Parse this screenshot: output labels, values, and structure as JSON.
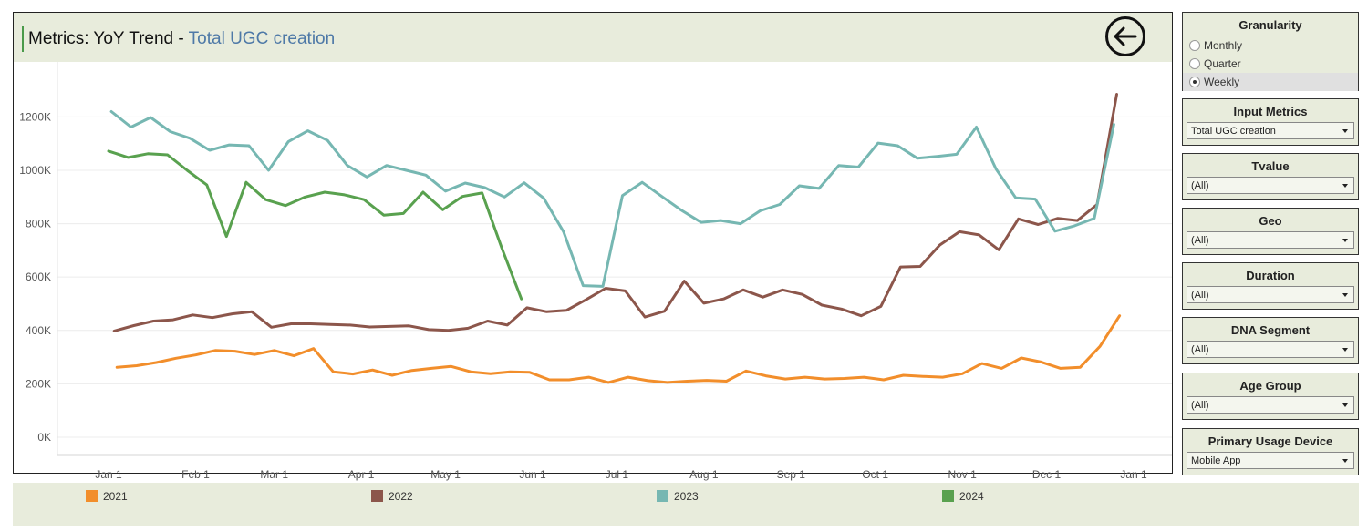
{
  "header": {
    "title_prefix": "Metrics: YoY Trend - ",
    "metric_name": "Total UGC creation",
    "back_icon": "arrow-left-circle-icon"
  },
  "filters": {
    "granularity": {
      "title": "Granularity",
      "options": [
        "Monthly",
        "Quarter",
        "Weekly"
      ],
      "selected": "Weekly"
    },
    "input_metrics": {
      "title": "Input Metrics",
      "value": "Total UGC creation"
    },
    "tvalue": {
      "title": "Tvalue",
      "value": "(All)"
    },
    "geo": {
      "title": "Geo",
      "value": "(All)"
    },
    "duration": {
      "title": "Duration",
      "value": "(All)"
    },
    "dna_segment": {
      "title": "DNA Segment",
      "value": "(All)"
    },
    "age_group": {
      "title": "Age Group",
      "value": "(All)"
    },
    "primary_usage_device": {
      "title": "Primary Usage Device",
      "value": "Mobile App"
    }
  },
  "legend": [
    "2021",
    "2022",
    "2023",
    "2024"
  ],
  "chart_data": {
    "type": "line",
    "title": "",
    "xlabel": "",
    "ylabel": "",
    "x_ticks": [
      "Jan 1",
      "Feb 1",
      "Mar 1",
      "Apr 1",
      "May 1",
      "Jun 1",
      "Jul 1",
      "Aug 1",
      "Sep 1",
      "Oct 1",
      "Nov 1",
      "Dec 1",
      "Jan 1"
    ],
    "y_ticks": [
      "0K",
      "200K",
      "400K",
      "600K",
      "800K",
      "1000K",
      "1200K"
    ],
    "ylim": [
      0,
      1290000
    ],
    "x_unit": "day of year",
    "x_domain": [
      0,
      365
    ],
    "grid": "horizontal",
    "legend_position": "bottom",
    "series": [
      {
        "name": "2021",
        "color": "#f28e2b",
        "x": [
          3,
          10,
          17,
          24,
          31,
          38,
          45,
          52,
          59,
          66,
          73,
          80,
          87,
          94,
          101,
          108,
          115,
          122,
          129,
          136,
          143,
          150,
          157,
          164,
          171,
          178,
          185,
          192,
          199,
          206,
          213,
          220,
          227,
          234,
          241,
          248,
          255,
          262,
          269,
          276,
          283,
          290,
          297,
          304,
          311,
          318,
          325,
          332,
          339,
          346,
          353,
          360
        ],
        "y": [
          262000,
          268000,
          280000,
          296000,
          308000,
          325000,
          322000,
          310000,
          325000,
          305000,
          332000,
          245000,
          237000,
          252000,
          232000,
          250000,
          258000,
          265000,
          245000,
          238000,
          245000,
          243000,
          215000,
          215000,
          225000,
          205000,
          225000,
          212000,
          205000,
          210000,
          213000,
          210000,
          248000,
          230000,
          218000,
          225000,
          218000,
          220000,
          225000,
          215000,
          232000,
          228000,
          225000,
          238000,
          276000,
          258000,
          297000,
          282000,
          258000,
          262000,
          340000,
          455000
        ]
      },
      {
        "name": "2022",
        "color": "#8c564b",
        "x": [
          2,
          9,
          16,
          23,
          30,
          37,
          44,
          51,
          58,
          65,
          72,
          79,
          86,
          93,
          100,
          107,
          114,
          121,
          128,
          135,
          142,
          149,
          156,
          163,
          170,
          177,
          184,
          191,
          198,
          205,
          212,
          219,
          226,
          233,
          240,
          247,
          254,
          261,
          268,
          275,
          282,
          289,
          296,
          303,
          310,
          317,
          324,
          331,
          338,
          345,
          352,
          359
        ],
        "y": [
          398000,
          418000,
          435000,
          440000,
          458000,
          448000,
          462000,
          470000,
          412000,
          425000,
          425000,
          422000,
          420000,
          413000,
          415000,
          417000,
          403000,
          400000,
          408000,
          435000,
          420000,
          485000,
          470000,
          475000,
          515000,
          558000,
          548000,
          450000,
          472000,
          585000,
          502000,
          518000,
          552000,
          525000,
          552000,
          535000,
          495000,
          480000,
          455000,
          490000,
          638000,
          640000,
          720000,
          770000,
          758000,
          702000,
          818000,
          797000,
          820000,
          812000,
          872000,
          1285000
        ]
      },
      {
        "name": "2023",
        "color": "#76b7b2",
        "x": [
          1,
          8,
          15,
          22,
          29,
          36,
          43,
          50,
          57,
          64,
          71,
          78,
          85,
          92,
          99,
          106,
          113,
          120,
          127,
          134,
          141,
          148,
          155,
          162,
          169,
          176,
          183,
          190,
          197,
          204,
          211,
          218,
          225,
          232,
          239,
          246,
          253,
          260,
          267,
          274,
          281,
          288,
          295,
          302,
          309,
          316,
          323,
          330,
          337,
          344,
          351,
          358
        ],
        "y": [
          1220000,
          1162000,
          1198000,
          1145000,
          1120000,
          1075000,
          1095000,
          1092000,
          1000000,
          1107000,
          1148000,
          1112000,
          1018000,
          975000,
          1018000,
          1000000,
          982000,
          922000,
          952000,
          935000,
          900000,
          953000,
          895000,
          770000,
          568000,
          565000,
          905000,
          955000,
          902000,
          850000,
          805000,
          812000,
          800000,
          848000,
          872000,
          942000,
          932000,
          1018000,
          1012000,
          1102000,
          1092000,
          1045000,
          1052000,
          1060000,
          1162000,
          1005000,
          897000,
          892000,
          772000,
          792000,
          820000,
          1172000
        ]
      },
      {
        "name": "2024",
        "color": "#59a14f",
        "x": [
          0,
          7,
          14,
          21,
          28,
          35,
          42,
          49,
          56,
          63,
          70,
          77,
          84,
          91,
          98,
          105,
          112,
          119,
          126,
          133,
          140,
          147
        ],
        "y": [
          1072000,
          1048000,
          1062000,
          1058000,
          1000000,
          945000,
          752000,
          955000,
          890000,
          868000,
          900000,
          918000,
          908000,
          890000,
          832000,
          838000,
          918000,
          852000,
          902000,
          915000,
          710000,
          518000
        ]
      }
    ]
  }
}
